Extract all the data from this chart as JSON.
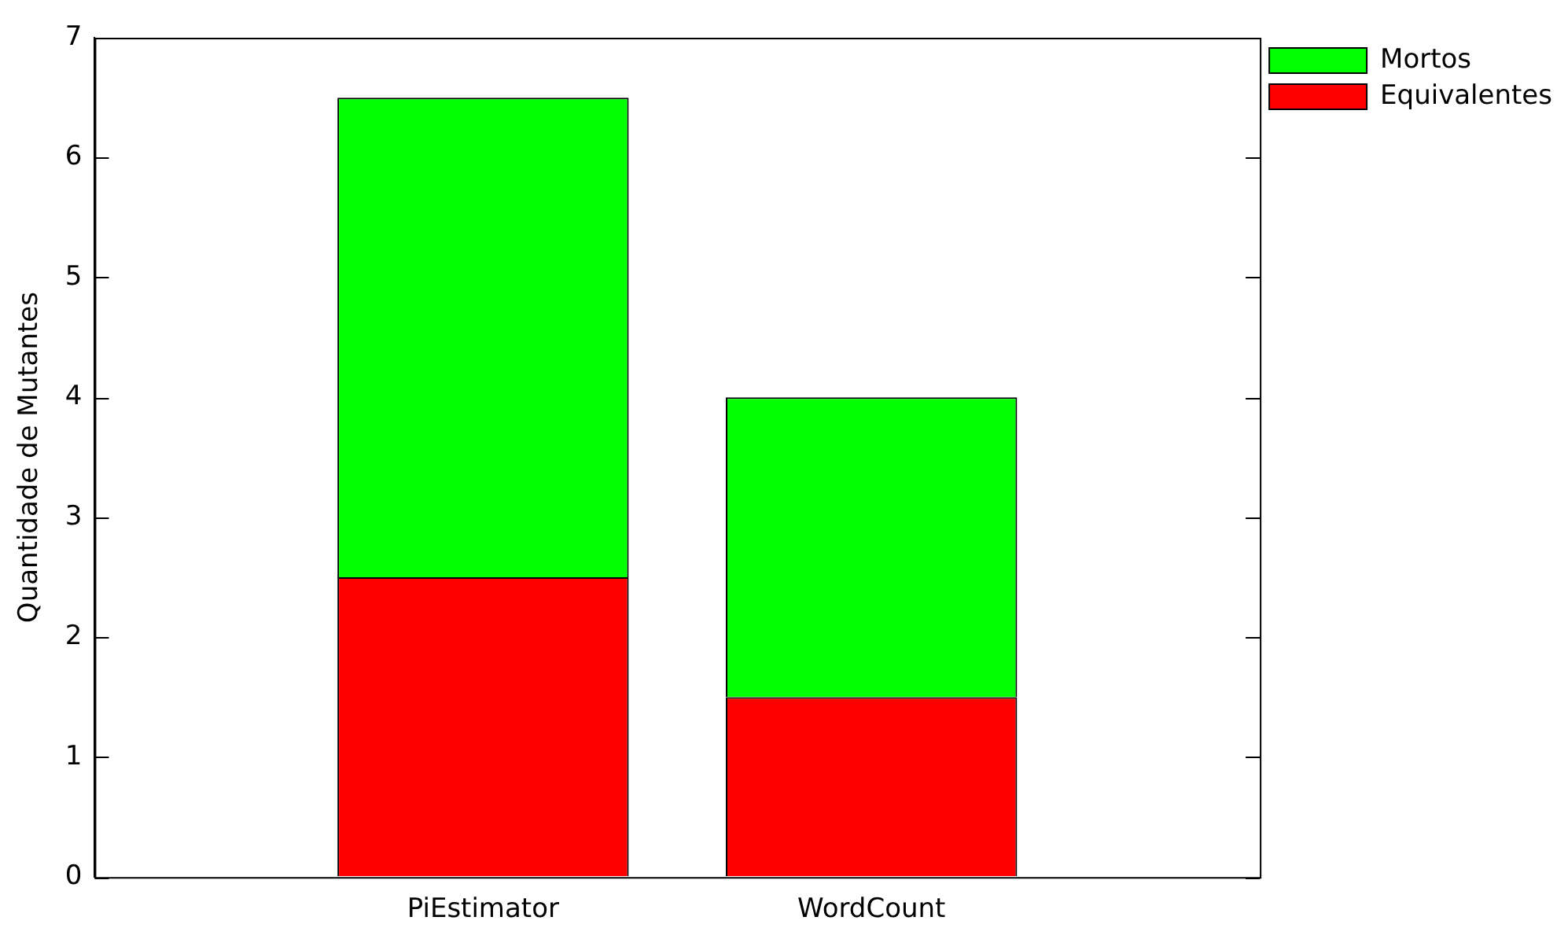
{
  "chart_data": {
    "type": "bar",
    "stacked": true,
    "ylabel": "Quantidade de Mutantes",
    "categories": [
      "PiEstimator",
      "WordCount"
    ],
    "series": [
      {
        "name": "Equivalentes",
        "color": "#ff0000",
        "values": [
          2.5,
          1.5
        ]
      },
      {
        "name": "Mortos",
        "color": "#00ff00",
        "values": [
          4,
          2.5
        ]
      }
    ],
    "ylim": [
      0,
      7
    ],
    "yticks": [
      0,
      1,
      2,
      3,
      4,
      5,
      6,
      7
    ],
    "legend": "top right"
  }
}
